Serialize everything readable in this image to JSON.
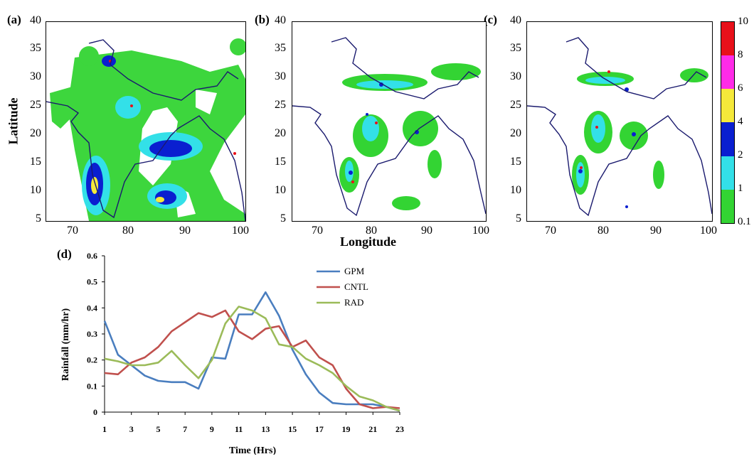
{
  "panels": {
    "a": "(a)",
    "b": "(b)",
    "c": "(c)",
    "d": "(d)"
  },
  "maps": {
    "lat_ticks": [
      "40",
      "35",
      "30",
      "25",
      "20",
      "15",
      "10",
      "5"
    ],
    "lon_ticks": [
      "70",
      "80",
      "90",
      "100"
    ],
    "ylabel": "Latitude",
    "xlabel": "Longitude"
  },
  "colorbar": {
    "labels": [
      "10",
      "8",
      "6",
      "4",
      "2",
      "1",
      "0.1"
    ],
    "colors": [
      "#e8101a",
      "#ff2be8",
      "#f5e93a",
      "#0a1fd0",
      "#33e0e8",
      "#33d433"
    ]
  },
  "chart_data": {
    "type": "line",
    "x": [
      1,
      2,
      3,
      4,
      5,
      6,
      7,
      8,
      9,
      10,
      11,
      12,
      13,
      14,
      15,
      16,
      17,
      18,
      19,
      20,
      21,
      22,
      23
    ],
    "xticks": [
      "1",
      "3",
      "5",
      "7",
      "9",
      "11",
      "13",
      "15",
      "17",
      "19",
      "21",
      "23"
    ],
    "yticks": [
      "0",
      "0.1",
      "0.2",
      "0.3",
      "0.4",
      "0.5",
      "0.6"
    ],
    "xlabel": "Time (Hrs)",
    "ylabel": "Rainfall (mm/hr)",
    "xlim": [
      1,
      23
    ],
    "ylim": [
      0,
      0.6
    ],
    "legend_position": "top-center",
    "series": [
      {
        "name": "GPM",
        "color": "#4a7ebf",
        "values": [
          0.35,
          0.22,
          0.18,
          0.14,
          0.12,
          0.115,
          0.115,
          0.09,
          0.21,
          0.205,
          0.375,
          0.375,
          0.46,
          0.37,
          0.24,
          0.145,
          0.075,
          0.035,
          0.03,
          0.03,
          0.03,
          0.02,
          0.005
        ]
      },
      {
        "name": "CNTL",
        "color": "#c0504d",
        "values": [
          0.15,
          0.145,
          0.19,
          0.21,
          0.25,
          0.31,
          0.345,
          0.38,
          0.365,
          0.39,
          0.31,
          0.28,
          0.32,
          0.33,
          0.25,
          0.275,
          0.21,
          0.18,
          0.09,
          0.03,
          0.015,
          0.02,
          0.015
        ]
      },
      {
        "name": "RAD",
        "color": "#9bbb59",
        "values": [
          0.205,
          0.195,
          0.18,
          0.18,
          0.19,
          0.235,
          0.18,
          0.13,
          0.2,
          0.34,
          0.405,
          0.39,
          0.36,
          0.26,
          0.25,
          0.205,
          0.18,
          0.15,
          0.1,
          0.06,
          0.045,
          0.02,
          0.005
        ]
      }
    ]
  }
}
